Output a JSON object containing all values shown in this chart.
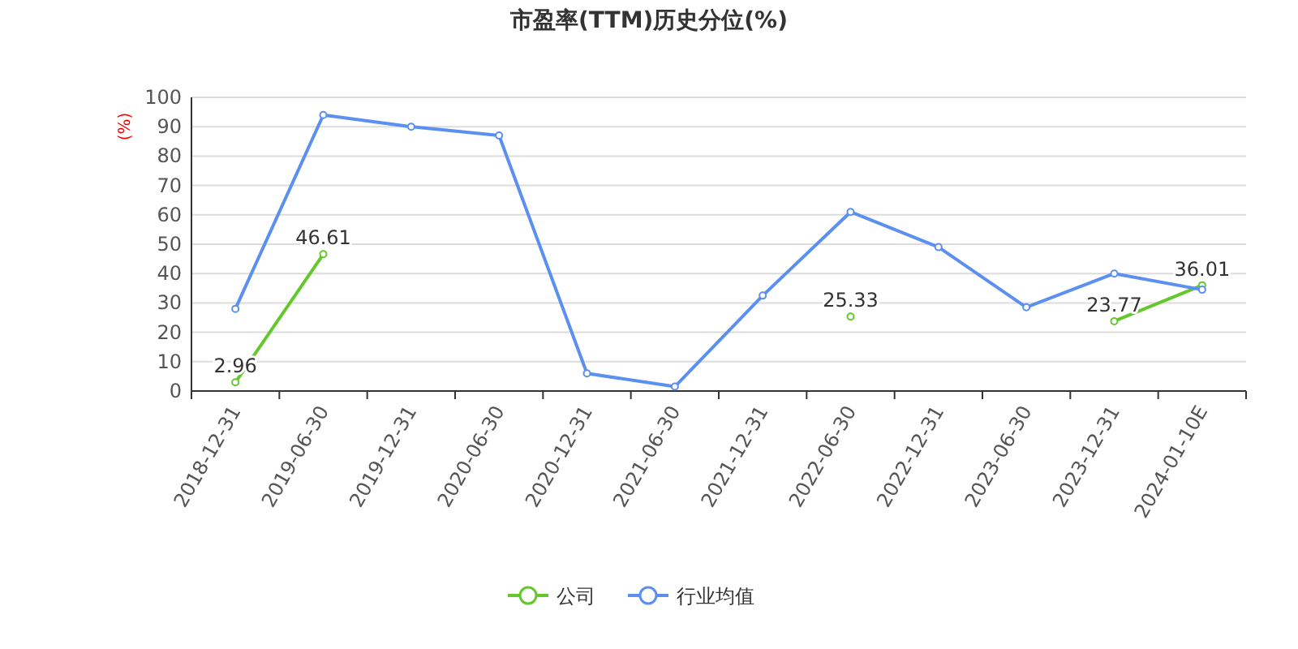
{
  "chart_data": {
    "type": "line",
    "title": "市盈率(TTM)历史分位(%)",
    "ylabel": "(%)",
    "categories": [
      "2018-12-31",
      "2019-06-30",
      "2019-12-31",
      "2020-06-30",
      "2020-12-31",
      "2021-06-30",
      "2021-12-31",
      "2022-06-30",
      "2022-12-31",
      "2023-06-30",
      "2023-12-31",
      "2024-01-10E"
    ],
    "series": [
      {
        "name": "公司",
        "color": "#65c72e",
        "values": [
          2.96,
          46.61,
          null,
          null,
          null,
          null,
          null,
          25.33,
          null,
          null,
          23.77,
          36.01
        ],
        "value_labels": [
          "2.96",
          "46.61",
          null,
          null,
          null,
          null,
          null,
          "25.33",
          null,
          null,
          "23.77",
          "36.01"
        ]
      },
      {
        "name": "行业均值",
        "color": "#5b8ff0",
        "values": [
          28,
          94,
          90,
          87,
          6,
          1.5,
          32.5,
          61,
          49,
          28.5,
          40,
          34.5
        ]
      }
    ],
    "ylim": [
      0,
      100
    ],
    "yticks": [
      0,
      10,
      20,
      30,
      40,
      50,
      60,
      70,
      80,
      90,
      100
    ],
    "grid": "y",
    "legend": "bottom",
    "marker": "circle",
    "line_style": "solid"
  }
}
